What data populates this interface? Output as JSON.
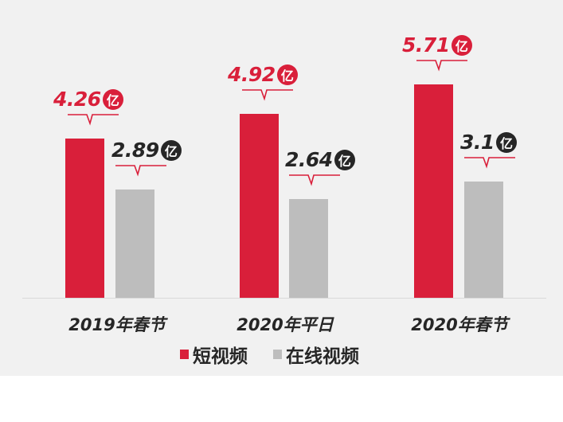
{
  "chart_data": {
    "type": "bar",
    "title": "",
    "xlabel": "",
    "ylabel": "",
    "unit": "亿",
    "categories": [
      "2019年春节",
      "2020年平日",
      "2020年春节"
    ],
    "series": [
      {
        "name": "短视频",
        "color": "#d91f3a",
        "values": [
          4.26,
          4.92,
          5.71
        ],
        "labels": [
          "4.26",
          "4.92",
          "5.71"
        ]
      },
      {
        "name": "在线视频",
        "color": "#bdbdbd",
        "values": [
          2.89,
          2.64,
          3.1
        ],
        "labels": [
          "2.89",
          "2.64",
          "3.1"
        ]
      }
    ],
    "label_colors": [
      "#d91f3a",
      "#262626"
    ],
    "ylim": [
      0,
      6
    ],
    "grid": false,
    "legend_position": "bottom"
  }
}
